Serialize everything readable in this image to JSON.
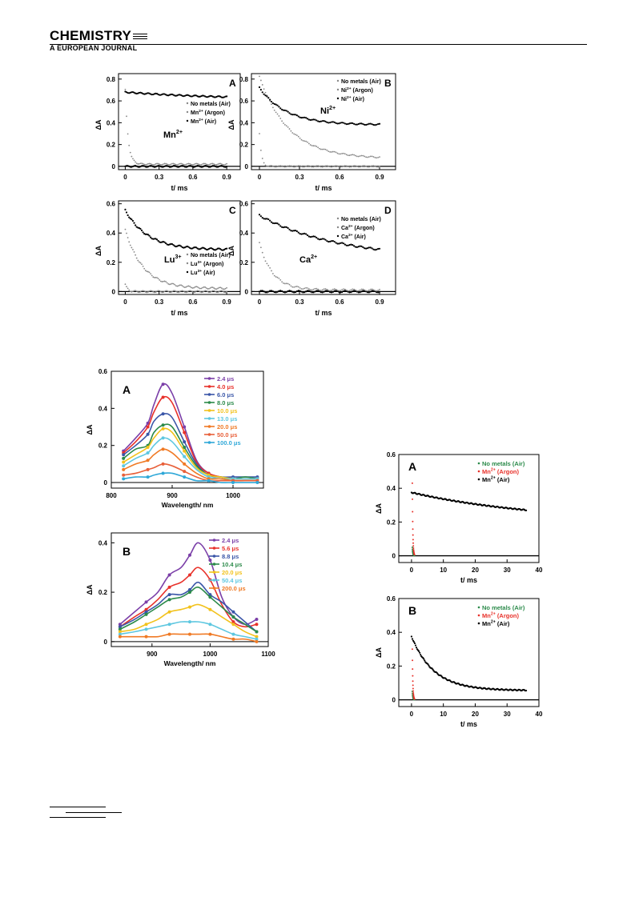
{
  "header": {
    "journal_title": "CHEMISTRY",
    "journal_subtitle": "A EUROPEAN JOURNAL"
  },
  "chart_data": [
    {
      "id": "top-A",
      "type": "scatter",
      "panel_label": "A",
      "ion_label": "Mn",
      "ion_charge": "2+",
      "xlabel": "t/ ms",
      "ylabel": "ΔA",
      "xticks": [
        "0",
        "0.3",
        "0.6",
        "0.9"
      ],
      "yticks": [
        "0",
        "0.2",
        "0.4",
        "0.6",
        "0.8"
      ],
      "xlim": [
        -0.06,
        1.02
      ],
      "ylim": [
        -0.03,
        0.85
      ],
      "legend": [
        "No metals (Air)",
        "Mn2+ (Argon)",
        "Mn2+ (Air)"
      ],
      "series": [
        {
          "name": "No metals (Air)",
          "kind": "flat",
          "y0": 0.0,
          "decay": 0,
          "tau": 1,
          "color": "#000000"
        },
        {
          "name": "Mn2+ (Argon)",
          "kind": "decay",
          "y0": 0.02,
          "decay": 0.68,
          "tau": 0.025,
          "color": "#888888"
        },
        {
          "name": "Mn2+ (Air)",
          "kind": "decay",
          "y0": 0.61,
          "decay": 0.07,
          "tau": 0.9,
          "color": "#000000"
        }
      ]
    },
    {
      "id": "top-B",
      "type": "scatter",
      "panel_label": "B",
      "ion_label": "Ni",
      "ion_charge": "2+",
      "xlabel": "t/ ms",
      "ylabel": "ΔA",
      "xticks": [
        "0",
        "0.3",
        "0.6",
        "0.9"
      ],
      "yticks": [
        "0",
        "0.2",
        "0.4",
        "0.6",
        "0.8"
      ],
      "xlim": [
        -0.06,
        1.02
      ],
      "ylim": [
        -0.03,
        0.85
      ],
      "legend": [
        "No metals (Air)",
        "Ni2+ (Argon)",
        "Ni2+ (Air)"
      ],
      "series": [
        {
          "name": "No metals (Air)",
          "kind": "decay",
          "y0": 0.0,
          "decay": 0.3,
          "tau": 0.015,
          "color": "#888888"
        },
        {
          "name": "Ni2+ (Argon)",
          "kind": "decay",
          "y0": 0.07,
          "decay": 0.75,
          "tau": 0.22,
          "color": "#888888"
        },
        {
          "name": "Ni2+ (Air)",
          "kind": "decay",
          "y0": 0.38,
          "decay": 0.34,
          "tau": 0.2,
          "color": "#000000"
        }
      ]
    },
    {
      "id": "top-C",
      "type": "scatter",
      "panel_label": "C",
      "ion_label": "Lu",
      "ion_charge": "3+",
      "xlabel": "t/ ms",
      "ylabel": "ΔA",
      "xticks": [
        "0",
        "0.3",
        "0.6",
        "0.9"
      ],
      "yticks": [
        "0",
        "0.2",
        "0.4",
        "0.6"
      ],
      "xlim": [
        -0.06,
        1.02
      ],
      "ylim": [
        -0.02,
        0.62
      ],
      "legend": [
        "No metals (Air)",
        "Lu3+ (Argon)",
        "Lu3+ (Air)"
      ],
      "series": [
        {
          "name": "No metals (Air)",
          "kind": "decay",
          "y0": 0.0,
          "decay": 0.05,
          "tau": 0.02,
          "color": "#888888"
        },
        {
          "name": "Lu3+ (Argon)",
          "kind": "decay",
          "y0": 0.02,
          "decay": 0.4,
          "tau": 0.16,
          "color": "#888888"
        },
        {
          "name": "Lu3+ (Air)",
          "kind": "decay",
          "y0": 0.285,
          "decay": 0.27,
          "tau": 0.2,
          "color": "#000000"
        }
      ]
    },
    {
      "id": "top-D",
      "type": "scatter",
      "panel_label": "D",
      "ion_label": "Ca",
      "ion_charge": "2+",
      "xlabel": "t/ ms",
      "ylabel": "ΔA",
      "xticks": [
        "0",
        "0.3",
        "0.6",
        "0.9"
      ],
      "yticks": [
        "0",
        "0.2",
        "0.4",
        "0.6"
      ],
      "xlim": [
        -0.06,
        1.02
      ],
      "ylim": [
        -0.02,
        0.62
      ],
      "legend": [
        "No metals (Air)",
        "Ca2+ (Argon)",
        "Ca2+ (Air)"
      ],
      "series": [
        {
          "name": "No metals (Air)",
          "kind": "flat",
          "y0": 0.0,
          "decay": 0,
          "tau": 1,
          "color": "#000000"
        },
        {
          "name": "Ca2+ (Argon)",
          "kind": "decay",
          "y0": 0.01,
          "decay": 0.32,
          "tau": 0.1,
          "color": "#888888"
        },
        {
          "name": "Ca2+ (Air)",
          "kind": "decay",
          "y0": 0.22,
          "decay": 0.3,
          "tau": 0.6,
          "color": "#000000"
        }
      ]
    },
    {
      "id": "spec-A",
      "type": "line",
      "panel_label": "A",
      "xlabel": "Wavelength/ nm",
      "ylabel": "ΔA",
      "xticks": [
        800,
        900,
        1000
      ],
      "yticks": [
        0,
        0.2,
        0.4,
        0.6
      ],
      "xlim": [
        800,
        1050
      ],
      "ylim": [
        -0.03,
        0.6
      ],
      "x": [
        820,
        840,
        860,
        870,
        885,
        900,
        920,
        940,
        960,
        980,
        1000,
        1020,
        1040
      ],
      "legend": [
        "2.4 μs",
        "4.0 μs",
        "6.0 μs",
        "8.0 μs",
        "10.0 μs",
        "13.0 μs",
        "20.0 μs",
        "50.0 μs",
        "100.0 μs"
      ],
      "series": [
        {
          "name": "2.4 μs",
          "color": "#7b3fa8",
          "values": [
            0.17,
            0.24,
            0.32,
            0.42,
            0.53,
            0.48,
            0.3,
            0.12,
            0.05,
            0.03,
            0.02,
            0.02,
            0.02
          ]
        },
        {
          "name": "4.0 μs",
          "color": "#e8312a",
          "values": [
            0.16,
            0.22,
            0.3,
            0.38,
            0.46,
            0.43,
            0.27,
            0.11,
            0.05,
            0.03,
            0.02,
            0.02,
            0.02
          ]
        },
        {
          "name": "6.0 μs",
          "color": "#3a56a8",
          "values": [
            0.15,
            0.2,
            0.26,
            0.33,
            0.37,
            0.35,
            0.22,
            0.1,
            0.04,
            0.03,
            0.03,
            0.03,
            0.03
          ]
        },
        {
          "name": "8.0 μs",
          "color": "#2b8a4a",
          "values": [
            0.13,
            0.18,
            0.2,
            0.27,
            0.31,
            0.3,
            0.19,
            0.09,
            0.04,
            0.03,
            0.02,
            0.03,
            0.02
          ]
        },
        {
          "name": "10.0 μs",
          "color": "#f2c21c",
          "values": [
            0.11,
            0.15,
            0.19,
            0.24,
            0.29,
            0.27,
            0.17,
            0.08,
            0.04,
            0.03,
            0.02,
            0.02,
            0.02
          ]
        },
        {
          "name": "13.0 μs",
          "color": "#5ec7e0",
          "values": [
            0.09,
            0.13,
            0.16,
            0.2,
            0.24,
            0.22,
            0.14,
            0.07,
            0.03,
            0.02,
            0.02,
            0.02,
            0.02
          ]
        },
        {
          "name": "20.0 μs",
          "color": "#f07a25",
          "values": [
            0.07,
            0.1,
            0.12,
            0.15,
            0.18,
            0.16,
            0.1,
            0.05,
            0.02,
            0.02,
            0.01,
            0.01,
            0.01
          ]
        },
        {
          "name": "50.0 μs",
          "color": "#e8603a",
          "values": [
            0.04,
            0.05,
            0.07,
            0.08,
            0.1,
            0.09,
            0.06,
            0.03,
            0.01,
            0.01,
            0.01,
            0.01,
            0.01
          ]
        },
        {
          "name": "100.0 μs",
          "color": "#2fa8d8",
          "values": [
            0.02,
            0.03,
            0.03,
            0.04,
            0.05,
            0.05,
            0.03,
            0.01,
            0.01,
            0.0,
            0.0,
            0.0,
            0.0
          ]
        }
      ]
    },
    {
      "id": "spec-B",
      "type": "line",
      "panel_label": "B",
      "xlabel": "Wavelength/ nm",
      "ylabel": "ΔA",
      "xticks": [
        900,
        1000,
        1100
      ],
      "yticks": [
        0,
        0.2,
        0.4
      ],
      "xlim": [
        830,
        1100
      ],
      "ylim": [
        -0.02,
        0.44
      ],
      "x": [
        845,
        870,
        890,
        910,
        930,
        950,
        965,
        980,
        1000,
        1020,
        1040,
        1060,
        1080
      ],
      "legend": [
        "2.4 μs",
        "5.6 μs",
        "8.8 μs",
        "10.4 μs",
        "20.0 μs",
        "50.4 μs",
        "200.0 μs"
      ],
      "series": [
        {
          "name": "2.4 μs",
          "color": "#7b3fa8",
          "values": [
            0.07,
            0.12,
            0.16,
            0.2,
            0.27,
            0.3,
            0.35,
            0.4,
            0.33,
            0.18,
            0.1,
            0.07,
            0.09
          ]
        },
        {
          "name": "5.6 μs",
          "color": "#e8312a",
          "values": [
            0.06,
            0.1,
            0.13,
            0.17,
            0.22,
            0.24,
            0.27,
            0.3,
            0.25,
            0.15,
            0.08,
            0.06,
            0.07
          ]
        },
        {
          "name": "8.8 μs",
          "color": "#3a56a8",
          "values": [
            0.06,
            0.09,
            0.12,
            0.15,
            0.19,
            0.19,
            0.21,
            0.24,
            0.19,
            0.16,
            0.12,
            0.08,
            0.04
          ]
        },
        {
          "name": "10.4 μs",
          "color": "#2b8a4a",
          "values": [
            0.05,
            0.08,
            0.11,
            0.14,
            0.17,
            0.18,
            0.2,
            0.22,
            0.18,
            0.14,
            0.1,
            0.07,
            0.04
          ]
        },
        {
          "name": "20.0 μs",
          "color": "#f2c21c",
          "values": [
            0.04,
            0.05,
            0.07,
            0.09,
            0.12,
            0.13,
            0.14,
            0.15,
            0.13,
            0.1,
            0.07,
            0.04,
            0.02
          ]
        },
        {
          "name": "50.4 μs",
          "color": "#5ec7e0",
          "values": [
            0.03,
            0.04,
            0.05,
            0.06,
            0.07,
            0.08,
            0.08,
            0.08,
            0.07,
            0.05,
            0.03,
            0.02,
            0.01
          ]
        },
        {
          "name": "200.0 μs",
          "color": "#f07a25",
          "values": [
            0.02,
            0.02,
            0.02,
            0.02,
            0.03,
            0.03,
            0.03,
            0.03,
            0.03,
            0.02,
            0.01,
            0.01,
            0.0
          ]
        }
      ]
    },
    {
      "id": "long-A",
      "type": "scatter",
      "panel_label": "A",
      "xlabel": "t/ ms",
      "ylabel": "ΔA",
      "xticks": [
        0,
        10,
        20,
        30,
        40
      ],
      "yticks": [
        0,
        0.2,
        0.4,
        0.6
      ],
      "xlim": [
        -4,
        40
      ],
      "ylim": [
        -0.04,
        0.6
      ],
      "legend": [
        "No metals (Air)",
        "Mn2+ (Argon)",
        "Mn2+ (Air)"
      ],
      "series": [
        {
          "name": "No metals (Air)",
          "kind": "spike",
          "y0": 0.0,
          "peak": 0.05,
          "color": "#2b8a4a"
        },
        {
          "name": "Mn2+ (Argon)",
          "kind": "spike",
          "y0": 0.0,
          "peak": 0.43,
          "color": "#e8312a"
        },
        {
          "name": "Mn2+ (Air)",
          "kind": "decay",
          "y0": 0.2,
          "decay": 0.175,
          "tau": 40,
          "color": "#000000"
        }
      ]
    },
    {
      "id": "long-B",
      "type": "scatter",
      "panel_label": "B",
      "xlabel": "t/ ms",
      "ylabel": "ΔA",
      "xticks": [
        0,
        10,
        20,
        30,
        40
      ],
      "yticks": [
        0,
        0.2,
        0.4,
        0.6
      ],
      "xlim": [
        -4,
        40
      ],
      "ylim": [
        -0.04,
        0.6
      ],
      "legend": [
        "No metals (Air)",
        "Mn2+ (Argon)",
        "Mn2+ (Air)"
      ],
      "series": [
        {
          "name": "No metals (Air)",
          "kind": "spike",
          "y0": 0.0,
          "peak": 0.05,
          "color": "#2b8a4a"
        },
        {
          "name": "Mn2+ (Argon)",
          "kind": "spike",
          "y0": 0.0,
          "peak": 0.3,
          "color": "#e8312a"
        },
        {
          "name": "Mn2+ (Air)",
          "kind": "decay",
          "y0": 0.055,
          "decay": 0.32,
          "tau": 7,
          "color": "#000000"
        }
      ]
    }
  ]
}
